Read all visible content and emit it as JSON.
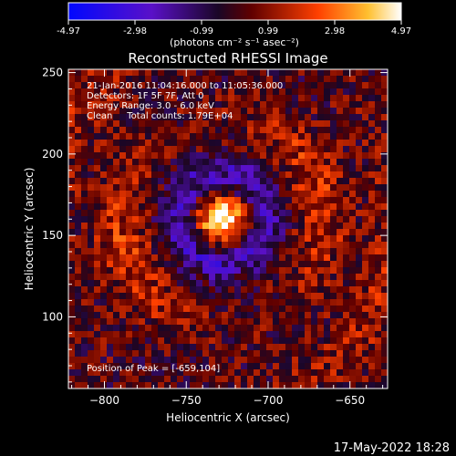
{
  "colorbar": {
    "ticks": [
      "-4.97",
      "-2.98",
      "-0.99",
      "0.99",
      "2.98",
      "4.97"
    ],
    "min": -4.97,
    "max": 4.97,
    "stops": [
      "#0008ff",
      "#2a0a6a",
      "#000000",
      "#ff2200",
      "#ffb020",
      "#ffffff"
    ]
  },
  "chart_data": {
    "type": "heatmap",
    "title": "Reconstructed RHESSI Image",
    "units_label": "(photons cm⁻² s⁻¹ asec⁻²)",
    "xlabel": "Heliocentric X (arcsec)",
    "ylabel": "Heliocentric Y (arcsec)",
    "xlim": [
      -822,
      -627
    ],
    "ylim": [
      56,
      252
    ],
    "xticks": [
      {
        "value": -800,
        "label": "−800"
      },
      {
        "value": -750,
        "label": "−750"
      },
      {
        "value": -700,
        "label": "−700"
      },
      {
        "value": -650,
        "label": "−650"
      }
    ],
    "yticks": [
      {
        "value": 250,
        "label": "250"
      },
      {
        "value": 200,
        "label": "200"
      },
      {
        "value": 150,
        "label": "150"
      },
      {
        "value": 100,
        "label": "100"
      }
    ],
    "grid": false,
    "info_lines": [
      "21-Jan-2016 11:04:16.000 to 11:05:36.000",
      "Detectors: 1F 5F 7F, Att 0",
      "Energy Range: 3.0 - 6.0 keV",
      "Clean     Total counts: 1.79E+04"
    ],
    "peak_label": "Position of Peak = [-659,104]",
    "peak_position": [
      -659,
      104
    ],
    "features": [
      {
        "label": "central-source",
        "x": -730,
        "y": 160,
        "value": 4.97
      }
    ]
  },
  "footer": {
    "date": "17-May-2022 18:28"
  }
}
